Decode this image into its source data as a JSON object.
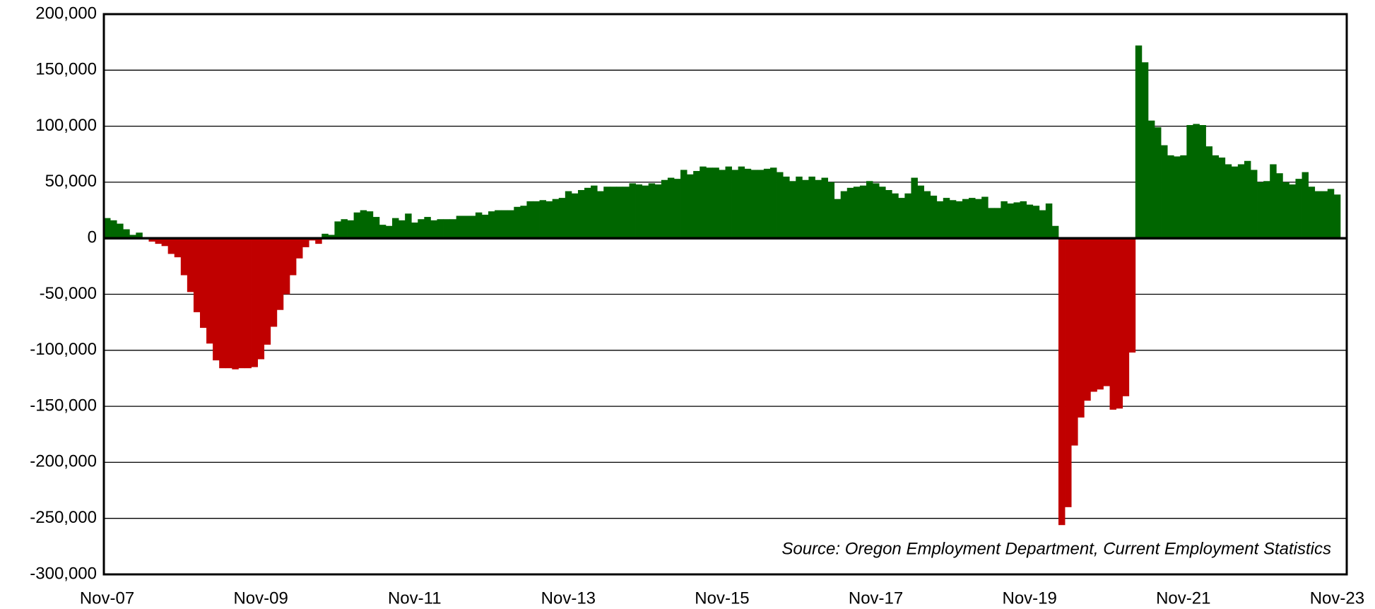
{
  "chart_data": {
    "type": "bar",
    "source": "Source: Oregon Employment Department, Current Employment Statistics",
    "categories": [
      "Nov-07",
      null,
      null,
      null,
      null,
      null,
      null,
      null,
      null,
      null,
      null,
      null,
      null,
      null,
      null,
      null,
      null,
      null,
      null,
      null,
      null,
      null,
      null,
      null,
      "Nov-09",
      null,
      null,
      null,
      null,
      null,
      null,
      null,
      null,
      null,
      null,
      null,
      null,
      null,
      null,
      null,
      null,
      null,
      null,
      null,
      null,
      null,
      null,
      null,
      "Nov-11",
      null,
      null,
      null,
      null,
      null,
      null,
      null,
      null,
      null,
      null,
      null,
      null,
      null,
      null,
      null,
      null,
      null,
      null,
      null,
      null,
      null,
      null,
      null,
      "Nov-13",
      null,
      null,
      null,
      null,
      null,
      null,
      null,
      null,
      null,
      null,
      null,
      null,
      null,
      null,
      null,
      null,
      null,
      null,
      null,
      null,
      null,
      null,
      null,
      "Nov-15",
      null,
      null,
      null,
      null,
      null,
      null,
      null,
      null,
      null,
      null,
      null,
      null,
      null,
      null,
      null,
      null,
      null,
      null,
      null,
      null,
      null,
      null,
      null,
      "Nov-17",
      null,
      null,
      null,
      null,
      null,
      null,
      null,
      null,
      null,
      null,
      null,
      null,
      null,
      null,
      null,
      null,
      null,
      null,
      null,
      null,
      null,
      null,
      null,
      "Nov-19",
      null,
      null,
      null,
      null,
      null,
      null,
      null,
      null,
      null,
      null,
      null,
      null,
      null,
      null,
      null,
      null,
      null,
      null,
      null,
      null,
      null,
      null,
      null,
      "Nov-21",
      null,
      null,
      null,
      null,
      null,
      null,
      null,
      null,
      null,
      null,
      null,
      null,
      null,
      null,
      null,
      null,
      null,
      null,
      null,
      null,
      null,
      null,
      null,
      "Nov-23"
    ],
    "values": [
      18000,
      16000,
      13000,
      8000,
      3000,
      5000,
      0,
      -3000,
      -5000,
      -7000,
      -14000,
      -17000,
      -33000,
      -48000,
      -66000,
      -80000,
      -94000,
      -109000,
      -116000,
      -116000,
      -117000,
      -116000,
      -116000,
      -115000,
      -108000,
      -95000,
      -79000,
      -64000,
      -50000,
      -33000,
      -18000,
      -8000,
      -2000,
      -5000,
      4000,
      3000,
      15000,
      17000,
      16000,
      23000,
      25000,
      24000,
      19000,
      12000,
      11000,
      18000,
      16000,
      22000,
      14000,
      17000,
      19000,
      16000,
      17000,
      17000,
      17000,
      20000,
      20000,
      20000,
      23000,
      21000,
      24000,
      25000,
      25000,
      25000,
      28000,
      29000,
      33000,
      33000,
      34000,
      33000,
      35000,
      36000,
      42000,
      40000,
      43000,
      45000,
      47000,
      42000,
      46000,
      46000,
      46000,
      46000,
      49000,
      48000,
      47000,
      49000,
      48000,
      52000,
      54000,
      53000,
      61000,
      57000,
      60000,
      64000,
      63000,
      63000,
      61000,
      64000,
      61000,
      64000,
      62000,
      61000,
      61000,
      62000,
      63000,
      59000,
      55000,
      51000,
      55000,
      52000,
      55000,
      52000,
      54000,
      50000,
      35000,
      42000,
      45000,
      46000,
      47000,
      51000,
      49000,
      46000,
      43000,
      40000,
      36000,
      40000,
      54000,
      47000,
      42000,
      38000,
      33000,
      36000,
      34000,
      33000,
      35000,
      36000,
      35000,
      37000,
      27000,
      27000,
      33000,
      31000,
      32000,
      33000,
      30000,
      29000,
      25000,
      31000,
      11000,
      -256000,
      -240000,
      -185000,
      -160000,
      -145000,
      -137000,
      -135000,
      -132000,
      -153000,
      -152000,
      -141000,
      -102000,
      172000,
      157000,
      105000,
      99000,
      83000,
      74000,
      73000,
      74000,
      101000,
      102000,
      101000,
      82000,
      74000,
      72000,
      66000,
      64000,
      66000,
      69000,
      61000,
      50000,
      51000,
      66000,
      58000,
      50000,
      48000,
      53000,
      59000,
      46000,
      42000,
      42000,
      44000,
      39000
    ],
    "positive_color": "#006600",
    "negative_color": "#c00000",
    "ylim": [
      -300000,
      200000
    ],
    "yticks": [
      {
        "value": -300000,
        "label": "-300,000"
      },
      {
        "value": -250000,
        "label": "-250,000"
      },
      {
        "value": -200000,
        "label": "-200,000"
      },
      {
        "value": -150000,
        "label": "-150,000"
      },
      {
        "value": -100000,
        "label": "-100,000"
      },
      {
        "value": -50000,
        "label": "-50,000"
      },
      0,
      {
        "value": 50000,
        "label": "50,000"
      },
      {
        "value": 100000,
        "label": "100,000"
      },
      {
        "value": 150000,
        "label": "150,000"
      },
      {
        "value": 200000,
        "label": "200,000"
      }
    ],
    "grid": true
  }
}
